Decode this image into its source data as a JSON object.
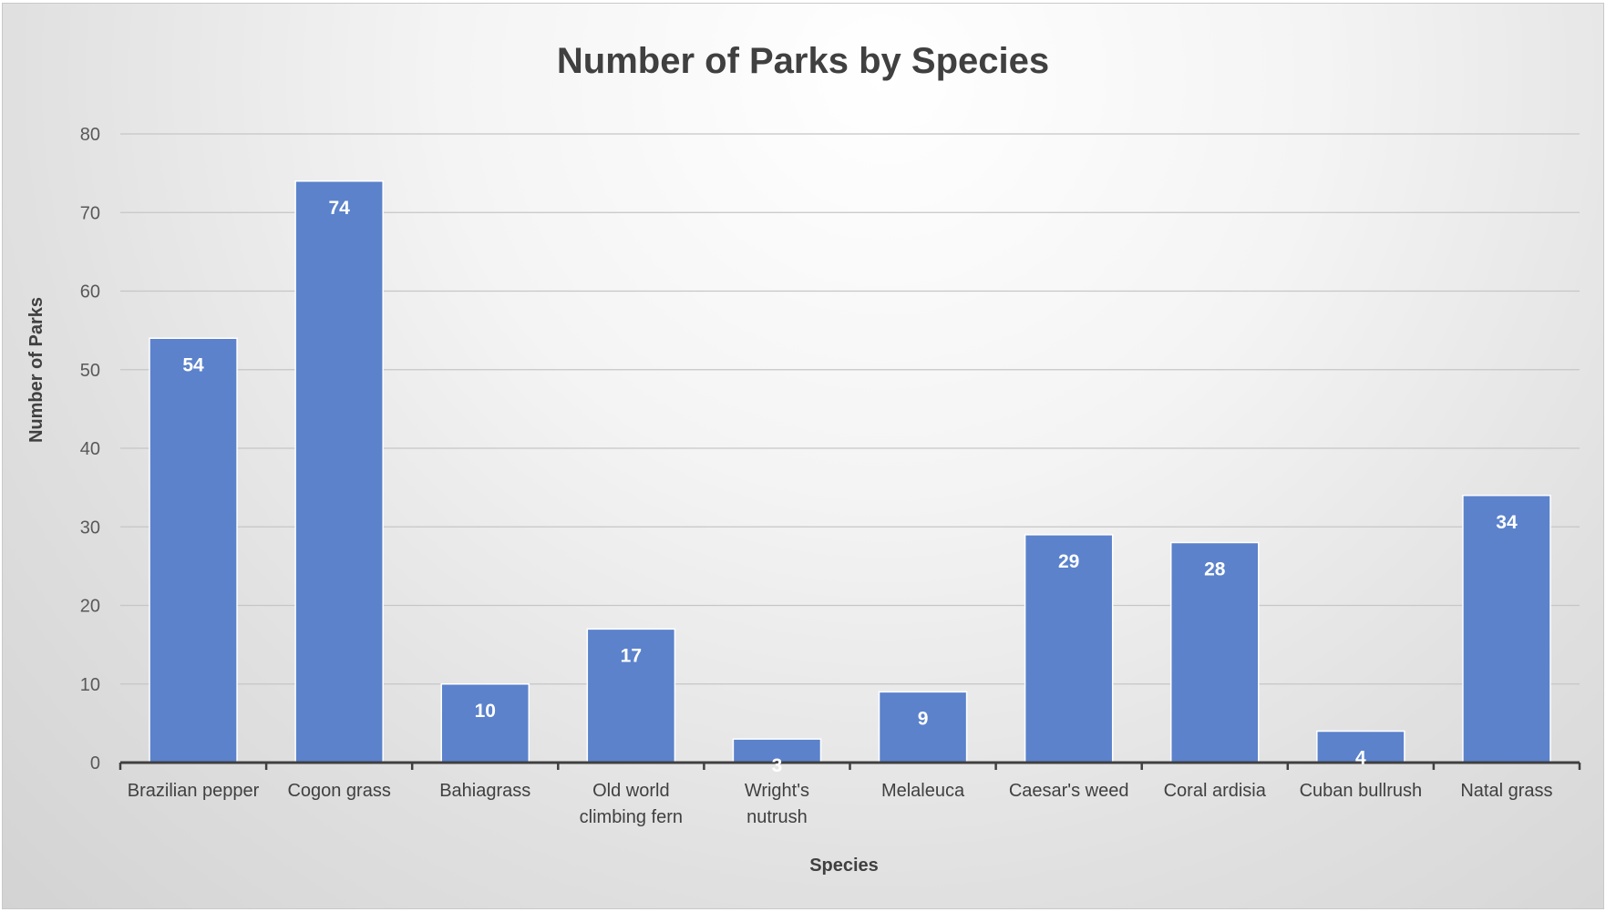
{
  "chart_data": {
    "type": "bar",
    "title": "Number of Parks by Species",
    "xlabel": "Species",
    "ylabel": "Number of Parks",
    "categories": [
      [
        "Brazilian pepper"
      ],
      [
        "Cogon grass"
      ],
      [
        "Bahiagrass"
      ],
      [
        "Old world",
        "climbing fern"
      ],
      [
        "Wright's",
        "nutrush"
      ],
      [
        "Melaleuca"
      ],
      [
        "Caesar's weed"
      ],
      [
        "Coral ardisia"
      ],
      [
        "Cuban bullrush"
      ],
      [
        "Natal grass"
      ]
    ],
    "values": [
      54,
      74,
      10,
      17,
      3,
      9,
      29,
      28,
      4,
      34
    ],
    "ylim": [
      0,
      80
    ],
    "yticks": [
      0,
      10,
      20,
      30,
      40,
      50,
      60,
      70,
      80
    ],
    "grid": true,
    "data_labels": true,
    "bar_color": "#5b82cb"
  }
}
